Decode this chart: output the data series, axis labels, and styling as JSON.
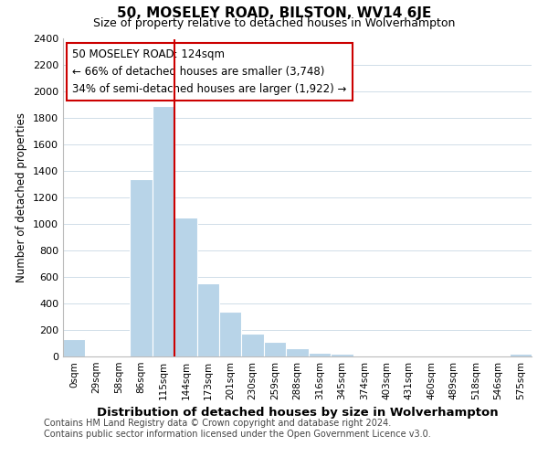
{
  "title": "50, MOSELEY ROAD, BILSTON, WV14 6JE",
  "subtitle": "Size of property relative to detached houses in Wolverhampton",
  "xlabel": "Distribution of detached houses by size in Wolverhampton",
  "ylabel": "Number of detached properties",
  "categories": [
    "0sqm",
    "29sqm",
    "58sqm",
    "86sqm",
    "115sqm",
    "144sqm",
    "173sqm",
    "201sqm",
    "230sqm",
    "259sqm",
    "288sqm",
    "316sqm",
    "345sqm",
    "374sqm",
    "403sqm",
    "431sqm",
    "460sqm",
    "489sqm",
    "518sqm",
    "546sqm",
    "575sqm"
  ],
  "values": [
    130,
    0,
    0,
    1340,
    1890,
    1050,
    550,
    340,
    170,
    110,
    60,
    30,
    20,
    0,
    0,
    0,
    0,
    0,
    0,
    0,
    20
  ],
  "bar_color": "#b8d4e8",
  "bar_edge_color": "#b8d4e8",
  "property_line_color": "#cc0000",
  "property_line_x": 4.5,
  "annotation_title": "50 MOSELEY ROAD: 124sqm",
  "annotation_line1": "← 66% of detached houses are smaller (3,748)",
  "annotation_line2": "34% of semi-detached houses are larger (1,922) →",
  "annotation_box_color": "#cc0000",
  "ylim": [
    0,
    2400
  ],
  "yticks": [
    0,
    200,
    400,
    600,
    800,
    1000,
    1200,
    1400,
    1600,
    1800,
    2000,
    2200,
    2400
  ],
  "footnote1": "Contains HM Land Registry data © Crown copyright and database right 2024.",
  "footnote2": "Contains public sector information licensed under the Open Government Licence v3.0.",
  "bg_color": "#ffffff",
  "grid_color": "#d0dde8"
}
